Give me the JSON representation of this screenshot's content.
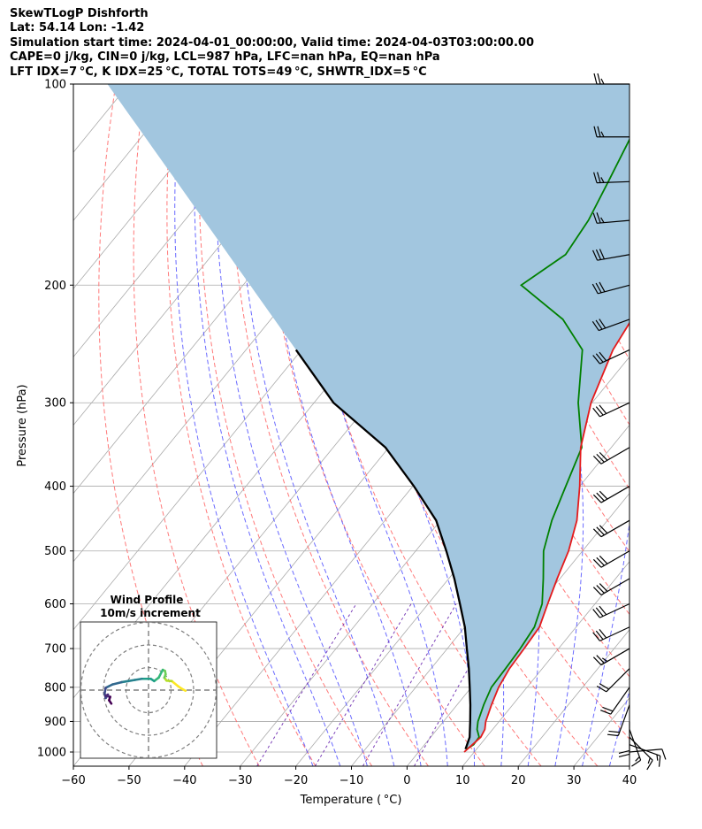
{
  "header": {
    "line1": "SkewTLogP Dishforth",
    "line2": "Lat: 54.14   Lon: -1.42",
    "line3": "Simulation start time: 2024-04-01_00:00:00, Valid time: 2024-04-03T03:00:00.00",
    "line4": "CAPE=0 j/kg, CIN=0 j/kg, LCL=987 hPa, LFC=nan hPa, EQ=nan hPa",
    "line5": "LFT IDX=7 °C, K IDX=25 °C, TOTAL TOTS=49 °C, SHWTR_IDX=5 °C"
  },
  "colors": {
    "temperature": "#e41a1c",
    "dewpoint": "#008000",
    "parcel": "#000000",
    "shading": "#a2c6df",
    "dry_adiabat": "#ff6a6a",
    "moist_adiabat": "#5a5aff",
    "mixing_ratio": "#7b3fb8",
    "isotherm": "#aaaaaa",
    "hodo_ring": "#7f7f7f"
  },
  "chart_data": {
    "type": "line",
    "subtype": "skew-t log-p",
    "xlabel": "Temperature ( °C)",
    "ylabel": "Pressure (hPa)",
    "xlim": [
      -60,
      40
    ],
    "ylim": [
      1050,
      100
    ],
    "y_scale": "log",
    "x_ticks": [
      "−60",
      "−50",
      "−40",
      "−30",
      "−20",
      "−10",
      "0",
      "10",
      "20",
      "30",
      "40"
    ],
    "y_ticks": [
      "100",
      "200",
      "300",
      "400",
      "500",
      "600",
      "700",
      "800",
      "900",
      "1000"
    ],
    "grid": true,
    "series": [
      {
        "key": "temperature",
        "x": [
          8.2,
          8.6,
          9.0,
          8.6,
          7.6,
          6.2,
          4.9,
          4.1,
          3.8,
          3.4,
          1.5,
          -0.5,
          -2.5,
          -5.5,
          -10.0,
          -15.5,
          -20.2,
          -24.0,
          -25.1,
          -23.2,
          -21.5,
          -19.0,
          -14.0,
          -8.0,
          0.5
        ],
        "y": [
          1000,
          975,
          950,
          925,
          900,
          850,
          800,
          750,
          700,
          650,
          600,
          550,
          500,
          450,
          400,
          350,
          300,
          250,
          225,
          200,
          180,
          160,
          140,
          120,
          100
        ]
      },
      {
        "key": "dewpoint",
        "x": [
          8.2,
          8.8,
          8.7,
          7.2,
          6.2,
          4.8,
          3.6,
          3.4,
          3.1,
          2.5,
          0.5,
          -3.0,
          -7.0,
          -10.0,
          -12.5,
          -15.3,
          -22.5,
          -29.5,
          -37.5,
          -50.0,
          -46.5,
          -47.4,
          -49.5,
          -52.0,
          -56.0
        ],
        "y": [
          990,
          975,
          950,
          925,
          900,
          850,
          800,
          750,
          700,
          650,
          600,
          550,
          500,
          450,
          400,
          350,
          300,
          250,
          225,
          200,
          180,
          160,
          140,
          120,
          100
        ]
      },
      {
        "key": "parcel",
        "x": [
          8.0,
          7.0,
          4.8,
          2.4,
          -0.3,
          -3.2,
          -6.5,
          -10.0,
          -14.3,
          -19.0,
          -24.5,
          -30.8,
          -39.8,
          -50.6,
          -66.5,
          -81.0
        ],
        "y": [
          990,
          950,
          900,
          850,
          800,
          750,
          700,
          650,
          600,
          550,
          500,
          450,
          400,
          350,
          300,
          250
        ]
      }
    ],
    "wind_barbs": {
      "pressure": [
        1000,
        975,
        950,
        925,
        900,
        850,
        800,
        750,
        700,
        650,
        600,
        550,
        500,
        450,
        400,
        350,
        300,
        250,
        225,
        200,
        180,
        160,
        140,
        120,
        100
      ],
      "direction_deg": [
        85,
        110,
        135,
        160,
        180,
        200,
        215,
        225,
        240,
        245,
        245,
        240,
        240,
        240,
        240,
        240,
        245,
        245,
        250,
        255,
        260,
        265,
        268,
        270,
        270
      ],
      "speed_kt": [
        10,
        15,
        15,
        15,
        20,
        20,
        20,
        20,
        25,
        30,
        30,
        30,
        30,
        30,
        30,
        30,
        30,
        30,
        30,
        30,
        30,
        25,
        25,
        25,
        25
      ]
    },
    "hodograph": {
      "title": "Wind Profile",
      "subtitle": "10m/s increment",
      "ring_step": 10,
      "u": [
        16.4,
        14.6,
        13.0,
        10.3,
        8.0,
        7.0,
        7.6,
        7.3,
        6.3,
        4.5,
        2.5,
        1.0,
        -3.0,
        -6.0,
        -9.0,
        -12.0,
        -16.0,
        -19.0,
        -19.5,
        -19.0,
        -18.0,
        -19.0,
        -17.0,
        -17.5,
        -16.5
      ],
      "v": [
        -0.3,
        0.7,
        1.8,
        4.0,
        4.2,
        5.5,
        7.0,
        8.5,
        9.0,
        5.5,
        4.0,
        5.0,
        5.0,
        4.5,
        4.0,
        3.5,
        2.5,
        1.0,
        -1.5,
        -3.5,
        -2.0,
        -2.5,
        -3.0,
        -4.5,
        -6.0
      ]
    }
  }
}
